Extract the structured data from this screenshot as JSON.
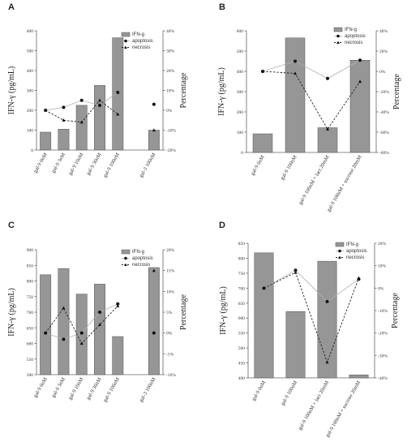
{
  "chart_data": [
    {
      "panel": "A",
      "type": "bar",
      "categories": [
        "gal-9 0nM",
        "gal-9 3nM",
        "gal-9 10nM",
        "gal-9 30nM",
        "gal-9 100nM",
        "",
        "gal-3 100nM"
      ],
      "series": [
        {
          "name": "IFN-g",
          "type": "bar",
          "axis": "left",
          "values": [
            90,
            105,
            225,
            325,
            565,
            null,
            100
          ]
        },
        {
          "name": "apoptosis",
          "type": "line",
          "axis": "right",
          "values": [
            0,
            1.5,
            5,
            2.5,
            9,
            null,
            3
          ]
        },
        {
          "name": "necrosis",
          "type": "line",
          "axis": "right",
          "values": [
            0,
            -5,
            -6,
            5,
            -2,
            null,
            -10
          ]
        }
      ],
      "ylabel": "IFN-γ (pg/mL)",
      "y2label": "Percentage",
      "ylim": [
        0,
        600
      ],
      "yticks": [
        0,
        100,
        200,
        300,
        400,
        500,
        600
      ],
      "y2lim": [
        -20,
        40
      ],
      "y2ticks": [
        "-20%",
        "-10%",
        "0%",
        "10%",
        "20%",
        "30%",
        "40%"
      ]
    },
    {
      "panel": "B",
      "type": "bar",
      "categories": [
        "gal-9 0nM",
        "gal-9 100nM",
        "gal-9 100nM + lact 20mM",
        "gal-9 100nM + sucrose 20mM"
      ],
      "series": [
        {
          "name": "IFN-g",
          "type": "bar",
          "axis": "left",
          "values": [
            92,
            565,
            122,
            455
          ]
        },
        {
          "name": "apoptosis",
          "type": "line",
          "axis": "right",
          "values": [
            0,
            10,
            -7,
            11
          ]
        },
        {
          "name": "necrosis",
          "type": "line",
          "axis": "right",
          "values": [
            0,
            -2,
            -57,
            -10
          ]
        }
      ],
      "ylabel": "IFN-γ (pg/mL)",
      "y2label": "Percentage",
      "ylim": [
        0,
        600
      ],
      "yticks": [
        0,
        100,
        200,
        300,
        400,
        500,
        600
      ],
      "y2lim": [
        -80,
        40
      ],
      "y2ticks": [
        "-80%",
        "-60%",
        "-40%",
        "-20%",
        "0%",
        "20%",
        "40%"
      ]
    },
    {
      "panel": "C",
      "type": "bar",
      "categories": [
        "gal-9 0nM",
        "gal-9 3nM",
        "gal-9 10nM",
        "gal-9 30nM",
        "gal-9 100nM",
        "",
        "gal-3 100nM"
      ],
      "series": [
        {
          "name": "IFN-g",
          "type": "bar",
          "axis": "left",
          "values": [
            820,
            840,
            758,
            790,
            622,
            null,
            843
          ]
        },
        {
          "name": "apoptosis",
          "type": "line",
          "axis": "right",
          "values": [
            0,
            -1.5,
            0,
            5,
            7,
            null,
            0
          ]
        },
        {
          "name": "necrosis",
          "type": "line",
          "axis": "right",
          "values": [
            0,
            6,
            -2.5,
            2,
            6.5,
            null,
            15
          ]
        }
      ],
      "ylabel": "IFN-γ (pg/mL)",
      "y2label": "Percentage",
      "ylim": [
        500,
        900
      ],
      "yticks": [
        500,
        550,
        600,
        650,
        700,
        750,
        800,
        850,
        900
      ],
      "y2lim": [
        -10,
        20
      ],
      "y2ticks": [
        "-10%",
        "-5%",
        "0%",
        "5%",
        "10%",
        "15%",
        "20%"
      ]
    },
    {
      "panel": "D",
      "type": "bar",
      "categories": [
        "gal-9 0nM",
        "gal-9 100nM",
        "gal-9 100nM + lact 20mM",
        "gal-9 100nM + sucrose 20mM"
      ],
      "series": [
        {
          "name": "IFN-g",
          "type": "bar",
          "axis": "left",
          "values": [
            818,
            622,
            790,
            410
          ]
        },
        {
          "name": "apoptosis",
          "type": "line",
          "axis": "right",
          "values": [
            0,
            8,
            -6,
            4
          ]
        },
        {
          "name": "necrosis",
          "type": "line",
          "axis": "right",
          "values": [
            0,
            7,
            -33,
            4.5
          ]
        }
      ],
      "ylabel": "IFN-γ (pg/mL)",
      "y2label": "Percentage",
      "ylim": [
        400,
        850
      ],
      "yticks": [
        400,
        450,
        500,
        550,
        600,
        650,
        700,
        750,
        800,
        850
      ],
      "y2lim": [
        -40,
        20
      ],
      "y2ticks": [
        "-40%",
        "-30%",
        "-20%",
        "-10%",
        "0%",
        "10%",
        "20%"
      ]
    }
  ]
}
